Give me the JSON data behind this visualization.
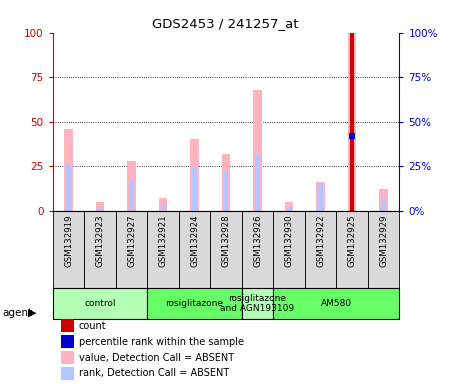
{
  "title": "GDS2453 / 241257_at",
  "samples": [
    "GSM132919",
    "GSM132923",
    "GSM132927",
    "GSM132921",
    "GSM132924",
    "GSM132928",
    "GSM132926",
    "GSM132930",
    "GSM132922",
    "GSM132925",
    "GSM132929"
  ],
  "pink_bars": [
    46,
    5,
    28,
    7,
    40,
    32,
    68,
    5,
    16,
    100,
    12
  ],
  "blue_bars": [
    27,
    2,
    17,
    4,
    24,
    22,
    32,
    2,
    15,
    42,
    7
  ],
  "red_bars": [
    0,
    0,
    0,
    0,
    0,
    0,
    0,
    0,
    0,
    100,
    0
  ],
  "blue_dot_vals": [
    0,
    0,
    0,
    0,
    0,
    0,
    0,
    0,
    0,
    42,
    0
  ],
  "agents": [
    {
      "label": "control",
      "start": 0,
      "end": 3,
      "color": "#b3ffb3"
    },
    {
      "label": "rosiglitazone",
      "start": 3,
      "end": 6,
      "color": "#66ff66"
    },
    {
      "label": "rosiglitazone\nand AGN193109",
      "start": 6,
      "end": 7,
      "color": "#b3ffb3"
    },
    {
      "label": "AM580",
      "start": 7,
      "end": 11,
      "color": "#66ff66"
    }
  ],
  "ylim": [
    0,
    100
  ],
  "yticks": [
    0,
    25,
    50,
    75,
    100
  ],
  "y_left_color": "#cc0000",
  "y_right_color": "#0000cc",
  "pink_color": "#ffb3c1",
  "blue_color": "#b3c6ff",
  "red_color": "#cc0000",
  "blue_marker_color": "#0000cc",
  "sample_box_color": "#d9d9d9",
  "agent_label": "agent",
  "legend_items": [
    {
      "color": "#cc0000",
      "label": "count"
    },
    {
      "color": "#0000cc",
      "label": "percentile rank within the sample"
    },
    {
      "color": "#ffb3c1",
      "label": "value, Detection Call = ABSENT"
    },
    {
      "color": "#b3c6ff",
      "label": "rank, Detection Call = ABSENT"
    }
  ]
}
